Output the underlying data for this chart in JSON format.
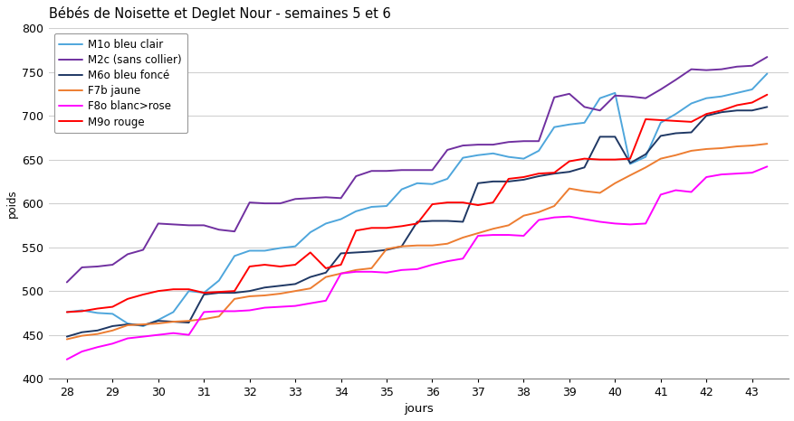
{
  "title": "Bébés de Noisette et Deglet Nour - semaines 5 et 6",
  "xlabel": "jours",
  "ylabel": "poids",
  "xlim": [
    27.6,
    43.8
  ],
  "ylim": [
    400,
    800
  ],
  "yticks": [
    400,
    450,
    500,
    550,
    600,
    650,
    700,
    750,
    800
  ],
  "xticks": [
    28,
    29,
    30,
    31,
    32,
    33,
    34,
    35,
    36,
    37,
    38,
    39,
    40,
    41,
    42,
    43
  ],
  "background_color": "#ffffff",
  "grid_color": "#d0d0d0",
  "series": [
    {
      "label": "M1o bleu clair",
      "color": "#4ea6dc",
      "linewidth": 1.4,
      "data_x": [
        28.0,
        28.33,
        28.67,
        29.0,
        29.33,
        29.67,
        30.0,
        30.33,
        30.67,
        31.0,
        31.33,
        31.67,
        32.0,
        32.33,
        32.67,
        33.0,
        33.33,
        33.67,
        34.0,
        34.33,
        34.67,
        35.0,
        35.33,
        35.67,
        36.0,
        36.33,
        36.67,
        37.0,
        37.33,
        37.67,
        38.0,
        38.33,
        38.67,
        39.0,
        39.33,
        39.67,
        40.0,
        40.33,
        40.67,
        41.0,
        41.33,
        41.67,
        42.0,
        42.33,
        42.67,
        43.0,
        43.33
      ],
      "data_y": [
        476,
        478,
        475,
        474,
        463,
        460,
        467,
        476,
        500,
        498,
        512,
        540,
        546,
        546,
        549,
        551,
        567,
        577,
        582,
        591,
        596,
        597,
        616,
        623,
        622,
        628,
        652,
        655,
        657,
        653,
        651,
        660,
        687,
        690,
        692,
        720,
        726,
        645,
        653,
        692,
        702,
        714,
        720,
        722,
        726,
        730,
        748
      ]
    },
    {
      "label": "M2c (sans collier)",
      "color": "#7030a0",
      "linewidth": 1.4,
      "data_x": [
        28.0,
        28.33,
        28.67,
        29.0,
        29.33,
        29.67,
        30.0,
        30.33,
        30.67,
        31.0,
        31.33,
        31.67,
        32.0,
        32.33,
        32.67,
        33.0,
        33.33,
        33.67,
        34.0,
        34.33,
        34.67,
        35.0,
        35.33,
        35.67,
        36.0,
        36.33,
        36.67,
        37.0,
        37.33,
        37.67,
        38.0,
        38.33,
        38.67,
        39.0,
        39.33,
        39.67,
        40.0,
        40.33,
        40.67,
        41.0,
        41.33,
        41.67,
        42.0,
        42.33,
        42.67,
        43.0,
        43.33
      ],
      "data_y": [
        510,
        527,
        528,
        530,
        542,
        547,
        577,
        576,
        575,
        575,
        570,
        568,
        601,
        600,
        600,
        605,
        606,
        607,
        606,
        631,
        637,
        637,
        638,
        638,
        638,
        661,
        666,
        667,
        667,
        670,
        671,
        671,
        721,
        725,
        710,
        706,
        723,
        722,
        720,
        730,
        741,
        753,
        752,
        753,
        756,
        757,
        767
      ]
    },
    {
      "label": "M6o bleu foncé",
      "color": "#1f3864",
      "linewidth": 1.4,
      "data_x": [
        28.0,
        28.33,
        28.67,
        29.0,
        29.33,
        29.67,
        30.0,
        30.33,
        30.67,
        31.0,
        31.33,
        31.67,
        32.0,
        32.33,
        32.67,
        33.0,
        33.33,
        33.67,
        34.0,
        34.33,
        34.67,
        35.0,
        35.33,
        35.67,
        36.0,
        36.33,
        36.67,
        37.0,
        37.33,
        37.67,
        38.0,
        38.33,
        38.67,
        39.0,
        39.33,
        39.67,
        40.0,
        40.33,
        40.67,
        41.0,
        41.33,
        41.67,
        42.0,
        42.33,
        42.67,
        43.0,
        43.33
      ],
      "data_y": [
        448,
        453,
        455,
        460,
        462,
        461,
        466,
        465,
        464,
        496,
        498,
        498,
        500,
        504,
        506,
        508,
        516,
        521,
        543,
        544,
        545,
        547,
        551,
        579,
        580,
        580,
        579,
        623,
        625,
        625,
        627,
        631,
        634,
        636,
        641,
        676,
        676,
        646,
        656,
        677,
        680,
        681,
        700,
        704,
        706,
        706,
        710
      ]
    },
    {
      "label": "F7b jaune",
      "color": "#ed7d31",
      "linewidth": 1.4,
      "data_x": [
        28.0,
        28.33,
        28.67,
        29.0,
        29.33,
        29.67,
        30.0,
        30.33,
        30.67,
        31.0,
        31.33,
        31.67,
        32.0,
        32.33,
        32.67,
        33.0,
        33.33,
        33.67,
        34.0,
        34.33,
        34.67,
        35.0,
        35.33,
        35.67,
        36.0,
        36.33,
        36.67,
        37.0,
        37.33,
        37.67,
        38.0,
        38.33,
        38.67,
        39.0,
        39.33,
        39.67,
        40.0,
        40.33,
        40.67,
        41.0,
        41.33,
        41.67,
        42.0,
        42.33,
        42.67,
        43.0,
        43.33
      ],
      "data_y": [
        445,
        449,
        451,
        455,
        461,
        462,
        463,
        465,
        466,
        468,
        471,
        491,
        494,
        495,
        497,
        500,
        503,
        516,
        520,
        524,
        526,
        548,
        551,
        552,
        552,
        554,
        561,
        566,
        571,
        575,
        586,
        590,
        597,
        617,
        614,
        612,
        623,
        632,
        641,
        651,
        655,
        660,
        662,
        663,
        665,
        666,
        668
      ]
    },
    {
      "label": "F8o blanc>rose",
      "color": "#ff00ff",
      "linewidth": 1.4,
      "data_x": [
        28.0,
        28.33,
        28.67,
        29.0,
        29.33,
        29.67,
        30.0,
        30.33,
        30.67,
        31.0,
        31.33,
        31.67,
        32.0,
        32.33,
        32.67,
        33.0,
        33.33,
        33.67,
        34.0,
        34.33,
        34.67,
        35.0,
        35.33,
        35.67,
        36.0,
        36.33,
        36.67,
        37.0,
        37.33,
        37.67,
        38.0,
        38.33,
        38.67,
        39.0,
        39.33,
        39.67,
        40.0,
        40.33,
        40.67,
        41.0,
        41.33,
        41.67,
        42.0,
        42.33,
        42.67,
        43.0,
        43.33
      ],
      "data_y": [
        422,
        431,
        436,
        440,
        446,
        448,
        450,
        452,
        450,
        476,
        477,
        477,
        478,
        481,
        482,
        483,
        486,
        489,
        520,
        522,
        522,
        521,
        524,
        525,
        530,
        534,
        537,
        563,
        564,
        564,
        563,
        581,
        584,
        585,
        582,
        579,
        577,
        576,
        577,
        610,
        615,
        613,
        630,
        633,
        634,
        635,
        642
      ]
    },
    {
      "label": "M9o rouge",
      "color": "#ff0000",
      "linewidth": 1.4,
      "data_x": [
        28.0,
        28.33,
        28.67,
        29.0,
        29.33,
        29.67,
        30.0,
        30.33,
        30.67,
        31.0,
        31.33,
        31.67,
        32.0,
        32.33,
        32.67,
        33.0,
        33.33,
        33.67,
        34.0,
        34.33,
        34.67,
        35.0,
        35.33,
        35.67,
        36.0,
        36.33,
        36.67,
        37.0,
        37.33,
        37.67,
        38.0,
        38.33,
        38.67,
        39.0,
        39.33,
        39.67,
        40.0,
        40.33,
        40.67,
        41.0,
        41.33,
        41.67,
        42.0,
        42.33,
        42.67,
        43.0,
        43.33
      ],
      "data_y": [
        476,
        477,
        480,
        482,
        491,
        496,
        500,
        502,
        502,
        498,
        499,
        500,
        528,
        530,
        528,
        530,
        544,
        526,
        530,
        569,
        572,
        572,
        574,
        577,
        599,
        601,
        601,
        598,
        601,
        628,
        630,
        634,
        635,
        648,
        651,
        650,
        650,
        651,
        696,
        695,
        694,
        693,
        702,
        706,
        712,
        715,
        724
      ]
    }
  ]
}
